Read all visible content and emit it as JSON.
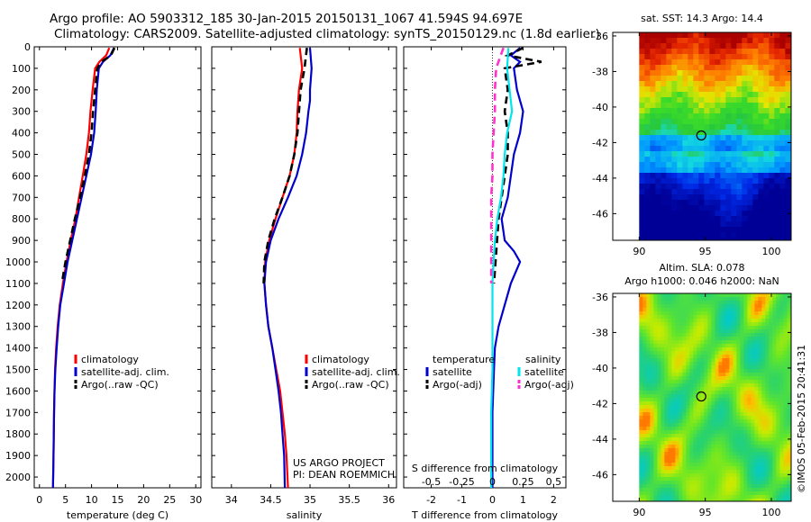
{
  "header": {
    "title_line1": "Argo profile: AO 5903312_185 30-Jan-2015 20150131_1067 41.594S 94.697E",
    "title_line2": "Climatology: CARS2009. Satellite-adjusted climatology: synTS_20150129.nc (1.8d earlier)"
  },
  "credit": {
    "project": "US ARGO PROJECT",
    "pi": "PI: DEAN ROEMMICH",
    "stamp": "©IMOS 05-Feb-2015 20:41:31"
  },
  "colors": {
    "climatology": "#ff0000",
    "satellite": "#0000cc",
    "argo": "#000000",
    "sal_satellite": "#00e5ee",
    "sal_argo": "#ff33cc"
  },
  "chart_data": [
    {
      "id": "temperature",
      "type": "line",
      "xlabel": "temperature (deg C)",
      "ylabel": "",
      "xlim": [
        -1,
        31
      ],
      "ylim": [
        0,
        2050
      ],
      "y_inverted": true,
      "xticks": [
        0,
        5,
        10,
        15,
        20,
        25,
        30
      ],
      "yticks": [
        0,
        100,
        200,
        300,
        400,
        500,
        600,
        700,
        800,
        900,
        1000,
        1100,
        1200,
        1300,
        1400,
        1500,
        1600,
        1700,
        1800,
        1900,
        2000
      ],
      "legend": [
        "climatology",
        "satellite-adj. clim.",
        "Argo(..raw -QC)"
      ],
      "legend_position": "lower-center",
      "series": [
        {
          "name": "climatology",
          "color": "#ff0000",
          "style": "solid",
          "points": [
            [
              13.4,
              5
            ],
            [
              12.8,
              40
            ],
            [
              11.5,
              70
            ],
            [
              10.7,
              100
            ],
            [
              10.2,
              200
            ],
            [
              9.8,
              300
            ],
            [
              9.5,
              400
            ],
            [
              9.0,
              500
            ],
            [
              8.3,
              600
            ],
            [
              7.6,
              700
            ],
            [
              6.9,
              800
            ],
            [
              6.0,
              900
            ],
            [
              5.2,
              1000
            ],
            [
              4.5,
              1100
            ],
            [
              3.9,
              1200
            ],
            [
              3.5,
              1300
            ],
            [
              3.2,
              1400
            ],
            [
              3.0,
              1500
            ],
            [
              2.9,
              1600
            ],
            [
              2.8,
              1700
            ],
            [
              2.75,
              1800
            ],
            [
              2.7,
              1900
            ],
            [
              2.6,
              2050
            ]
          ]
        },
        {
          "name": "satellite-adj. clim.",
          "color": "#0000cc",
          "style": "solid",
          "points": [
            [
              14.3,
              5
            ],
            [
              13.6,
              40
            ],
            [
              12.2,
              70
            ],
            [
              11.4,
              100
            ],
            [
              11.0,
              200
            ],
            [
              10.8,
              300
            ],
            [
              10.5,
              400
            ],
            [
              9.9,
              500
            ],
            [
              9.0,
              600
            ],
            [
              8.1,
              700
            ],
            [
              7.2,
              800
            ],
            [
              6.3,
              900
            ],
            [
              5.4,
              1000
            ],
            [
              4.7,
              1100
            ],
            [
              4.0,
              1200
            ],
            [
              3.6,
              1300
            ],
            [
              3.3,
              1400
            ],
            [
              3.05,
              1500
            ],
            [
              2.9,
              1600
            ],
            [
              2.8,
              1700
            ],
            [
              2.75,
              1800
            ],
            [
              2.7,
              1900
            ],
            [
              2.6,
              2050
            ]
          ]
        },
        {
          "name": "Argo(..raw -QC)",
          "color": "#000000",
          "style": "dashed",
          "points": [
            [
              14.4,
              5
            ],
            [
              13.7,
              40
            ],
            [
              11.9,
              70
            ],
            [
              11.1,
              100
            ],
            [
              10.7,
              200
            ],
            [
              10.3,
              300
            ],
            [
              10.0,
              400
            ],
            [
              9.5,
              500
            ],
            [
              8.7,
              600
            ],
            [
              7.8,
              700
            ],
            [
              6.8,
              800
            ],
            [
              5.9,
              900
            ],
            [
              5.0,
              1000
            ],
            [
              4.3,
              1100
            ]
          ]
        }
      ]
    },
    {
      "id": "salinity",
      "type": "line",
      "xlabel": "salinity",
      "ylabel": "",
      "xlim": [
        33.75,
        36.1
      ],
      "ylim": [
        0,
        2050
      ],
      "y_inverted": true,
      "xticks": [
        34,
        34.5,
        35,
        35.5,
        36
      ],
      "legend": [
        "climatology",
        "satellite-adj. clim.",
        "Argo(..raw -QC)"
      ],
      "legend_position": "lower-right",
      "series": [
        {
          "name": "climatology",
          "color": "#ff0000",
          "style": "solid",
          "points": [
            [
              34.87,
              5
            ],
            [
              34.9,
              100
            ],
            [
              34.86,
              200
            ],
            [
              34.84,
              300
            ],
            [
              34.83,
              400
            ],
            [
              34.8,
              500
            ],
            [
              34.74,
              600
            ],
            [
              34.65,
              700
            ],
            [
              34.56,
              800
            ],
            [
              34.48,
              900
            ],
            [
              34.43,
              1000
            ],
            [
              34.42,
              1100
            ],
            [
              34.44,
              1200
            ],
            [
              34.47,
              1300
            ],
            [
              34.52,
              1400
            ],
            [
              34.57,
              1500
            ],
            [
              34.62,
              1600
            ],
            [
              34.65,
              1700
            ],
            [
              34.68,
              1800
            ],
            [
              34.7,
              1900
            ],
            [
              34.72,
              2050
            ]
          ]
        },
        {
          "name": "satellite-adj. clim.",
          "color": "#0000cc",
          "style": "solid",
          "points": [
            [
              35.0,
              5
            ],
            [
              35.02,
              100
            ],
            [
              35.0,
              200
            ],
            [
              35.0,
              250
            ],
            [
              34.98,
              300
            ],
            [
              34.95,
              400
            ],
            [
              34.9,
              500
            ],
            [
              34.83,
              600
            ],
            [
              34.72,
              700
            ],
            [
              34.6,
              800
            ],
            [
              34.5,
              900
            ],
            [
              34.44,
              1000
            ],
            [
              34.42,
              1100
            ],
            [
              34.44,
              1200
            ],
            [
              34.47,
              1300
            ],
            [
              34.52,
              1400
            ],
            [
              34.56,
              1500
            ],
            [
              34.6,
              1600
            ],
            [
              34.63,
              1700
            ],
            [
              34.65,
              1800
            ],
            [
              34.67,
              1900
            ],
            [
              34.68,
              2050
            ]
          ]
        },
        {
          "name": "Argo(..raw -QC)",
          "color": "#000000",
          "style": "dashed",
          "points": [
            [
              34.96,
              5
            ],
            [
              34.93,
              100
            ],
            [
              34.88,
              200
            ],
            [
              34.86,
              300
            ],
            [
              34.84,
              400
            ],
            [
              34.8,
              500
            ],
            [
              34.74,
              600
            ],
            [
              34.65,
              700
            ],
            [
              34.55,
              800
            ],
            [
              34.47,
              900
            ],
            [
              34.42,
              1000
            ],
            [
              34.41,
              1100
            ]
          ]
        }
      ]
    },
    {
      "id": "difference",
      "type": "line",
      "xlabel": "T difference from climatology",
      "x2label": "S difference from climatology",
      "xlim": [
        -2.9,
        2.4
      ],
      "ylim": [
        0,
        2050
      ],
      "y_inverted": true,
      "xticks": [
        -2,
        -1,
        0,
        1,
        2
      ],
      "x2lim": [
        -0.725,
        0.6
      ],
      "x2ticks": [
        -0.5,
        -0.25,
        0,
        0.25,
        0.5
      ],
      "x2ticklabels": [
        "-0.5",
        "-0.25",
        "0",
        "0.25",
        "0.5"
      ],
      "legend_groups": [
        {
          "title": "temperature",
          "entries": [
            "satellite",
            "Argo(-adj)"
          ]
        },
        {
          "title": "salinity",
          "entries": [
            "satellite",
            "Argo(-adj)"
          ]
        }
      ],
      "legend_position": "lower-center",
      "series": [
        {
          "name": "temperature satellite",
          "color": "#0000cc",
          "style": "solid",
          "points": [
            [
              0.9,
              5
            ],
            [
              0.6,
              40
            ],
            [
              0.9,
              70
            ],
            [
              0.7,
              100
            ],
            [
              0.8,
              200
            ],
            [
              1.0,
              300
            ],
            [
              0.9,
              400
            ],
            [
              0.7,
              500
            ],
            [
              0.6,
              600
            ],
            [
              0.5,
              700
            ],
            [
              0.3,
              800
            ],
            [
              0.4,
              900
            ],
            [
              0.7,
              950
            ],
            [
              0.9,
              1000
            ],
            [
              0.6,
              1100
            ],
            [
              0.4,
              1200
            ],
            [
              0.2,
              1300
            ],
            [
              0.08,
              1400
            ],
            [
              0.05,
              1500
            ],
            [
              0.0,
              1700
            ],
            [
              0.0,
              2050
            ]
          ]
        },
        {
          "name": "temperature Argo(-adj)",
          "color": "#000000",
          "style": "dashed",
          "points": [
            [
              1.0,
              5
            ],
            [
              0.5,
              40
            ],
            [
              1.6,
              70
            ],
            [
              0.4,
              100
            ],
            [
              0.5,
              200
            ],
            [
              0.4,
              300
            ],
            [
              0.5,
              400
            ],
            [
              0.5,
              500
            ],
            [
              0.4,
              600
            ],
            [
              0.3,
              700
            ],
            [
              0.2,
              800
            ],
            [
              0.15,
              900
            ],
            [
              0.1,
              1000
            ],
            [
              0.05,
              1100
            ]
          ]
        },
        {
          "name": "salinity satellite",
          "color": "#00e5ee",
          "style": "solid",
          "points": [
            [
              0.13,
              5
            ],
            [
              0.12,
              100
            ],
            [
              0.14,
              200
            ],
            [
              0.16,
              300
            ],
            [
              0.12,
              400
            ],
            [
              0.1,
              500
            ],
            [
              0.09,
              600
            ],
            [
              0.07,
              700
            ],
            [
              0.04,
              800
            ],
            [
              0.02,
              900
            ],
            [
              0.01,
              1000
            ],
            [
              0.0,
              1100
            ],
            [
              0.0,
              1300
            ],
            [
              0.0,
              1500
            ],
            [
              -0.01,
              1700
            ],
            [
              -0.01,
              2050
            ]
          ]
        },
        {
          "name": "salinity Argo(-adj)",
          "color": "#ff33cc",
          "style": "dashed",
          "points": [
            [
              0.09,
              5
            ],
            [
              0.03,
              100
            ],
            [
              0.02,
              200
            ],
            [
              0.02,
              300
            ],
            [
              0.01,
              400
            ],
            [
              0.0,
              500
            ],
            [
              0.0,
              600
            ],
            [
              -0.01,
              700
            ],
            [
              -0.01,
              800
            ],
            [
              -0.01,
              900
            ],
            [
              -0.01,
              1000
            ],
            [
              -0.01,
              1100
            ]
          ]
        }
      ]
    },
    {
      "id": "sst-map",
      "type": "heatmap",
      "title": "sat. SST: 14.3  Argo: 14.4",
      "xlim": [
        88,
        101.5
      ],
      "ylim": [
        -47.5,
        -35.8
      ],
      "xticks": [
        90,
        95,
        100
      ],
      "yticks": [
        -36,
        -38,
        -40,
        -42,
        -44,
        -46
      ],
      "marker": {
        "lon": 94.7,
        "lat": -41.6
      }
    },
    {
      "id": "sla-map",
      "type": "heatmap",
      "title": "Altim. SLA: 0.078",
      "subtitle": "Argo h1000: 0.046 h2000: NaN",
      "xlim": [
        88,
        101.5
      ],
      "ylim": [
        -47.5,
        -35.8
      ],
      "xticks": [
        90,
        95,
        100
      ],
      "yticks": [
        -36,
        -38,
        -40,
        -42,
        -44,
        -46
      ],
      "marker": {
        "lon": 94.7,
        "lat": -41.6
      }
    }
  ]
}
